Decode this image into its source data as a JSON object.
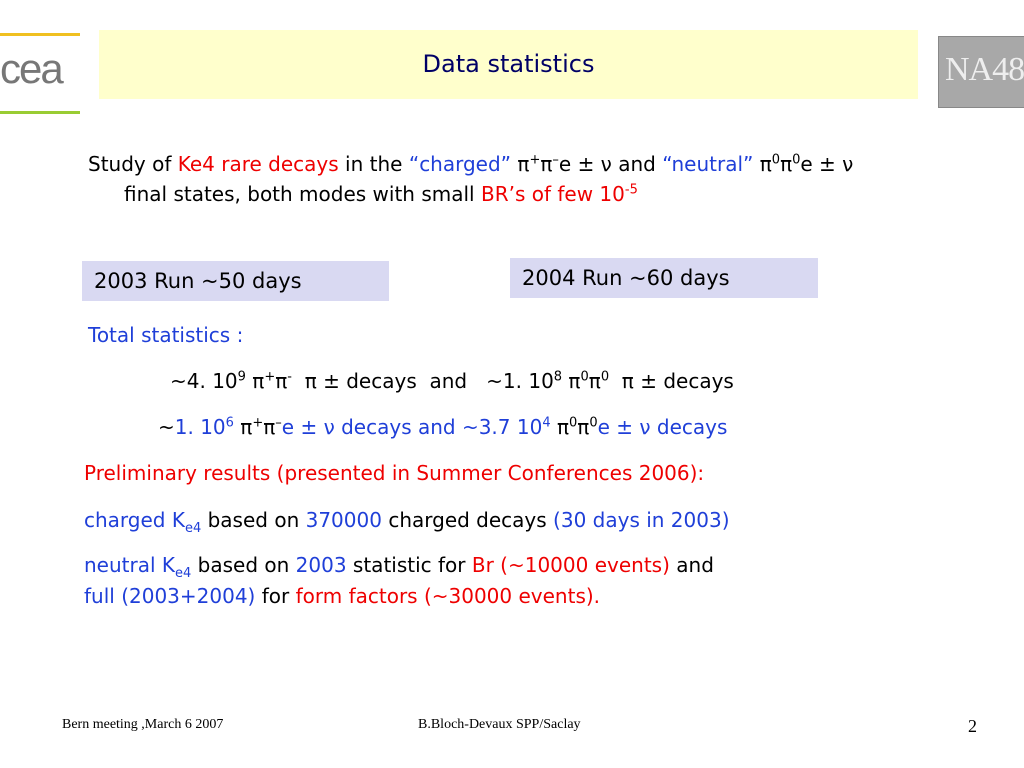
{
  "title": "Data statistics",
  "intro": {
    "study_of": "Study of ",
    "ke4": "Ke4 rare decays",
    "in_the": " in the ",
    "charged": "“charged”",
    "charged_mode": " π",
    "plus": "+",
    "pi": "π",
    "minus": "–",
    "e_pm_nu": "e ± ν",
    "and": " and ",
    "neutral": "“neutral”",
    "neutral_mode": " π",
    "zero": "0",
    "pi2": "π",
    "zero2": "0",
    "e_pm_nu2": "e ± ν",
    "line2_a": "final states, both modes with small ",
    "br": "BR’s of few 10",
    "br_exp": "-5"
  },
  "run2003": "2003 Run ~50 days",
  "run2004": "2004 Run ~60 days",
  "total_stats": "Total statistics :",
  "stats1": {
    "a": "~4. 10",
    "a_exp": "9",
    "b": " π",
    "b_sup": "+",
    "c": "π",
    "c_sup": "-",
    "d": "  π ± decays  and   ~1. 10",
    "d_exp": "8",
    "e": " π",
    "e_sup": "0",
    "f": "π",
    "f_sup": "0",
    "g": "  π ± decays"
  },
  "stats2": {
    "tilde": "~",
    "a": "1. 10",
    "a_exp": "6",
    "b": " π",
    "b_sup": "+",
    "c": "π",
    "c_sup": "–",
    "d": "e ± ν decays and ~3.7 10",
    "d_exp": "4",
    "e": " π",
    "e_sup": "0",
    "f": "π",
    "f_sup": "0",
    "g": "e ± ν decays"
  },
  "preliminary": "Preliminary results (presented in Summer Conferences 2006):",
  "charged_line": {
    "a": "charged K",
    "a_sub": "e4",
    "b": " based on ",
    "c": "370000",
    "d": " charged decays ",
    "e": "(30 days in 2003)"
  },
  "neutral_line": {
    "a": "neutral K",
    "a_sub": "e4",
    "b": " based on ",
    "c": "2003",
    "d": " statistic for ",
    "e": "Br (~10000 events)",
    "f": " and"
  },
  "full_line": {
    "a": "full (2003+2004)",
    "b": " for ",
    "c": "form factors (~30000 events)",
    "d": "."
  },
  "footer": {
    "left": "Bern meeting ,March 6 2007",
    "center": "B.Bloch-Devaux SPP/Saclay",
    "page": "2"
  },
  "logos": {
    "cea": "cea",
    "na48": "NA48"
  },
  "colors": {
    "blue": "#1f3fd8",
    "red": "#ee0000",
    "title_bg": "#ffffcc",
    "box_bg": "#d9d9f2"
  }
}
